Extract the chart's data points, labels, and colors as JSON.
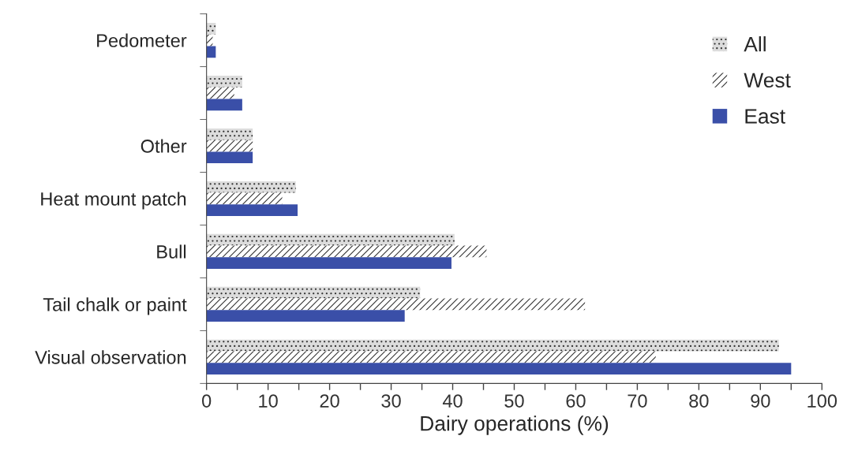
{
  "chart_data": {
    "type": "bar",
    "orientation": "horizontal",
    "xlabel": "Dairy operations (%)",
    "categories": [
      "Pedometer",
      null,
      "Other",
      "Heat mount patch",
      "Bull",
      "Tail chalk or paint",
      "Visual observation"
    ],
    "series": [
      {
        "name": "All",
        "color": "#dcdcdc",
        "values": [
          1.5,
          5.8,
          7.5,
          14.5,
          40.3,
          34.7,
          93
        ]
      },
      {
        "name": "West",
        "color": "#ffffff",
        "values": [
          1,
          4.5,
          7.5,
          12.3,
          45.5,
          61.5,
          73
        ]
      },
      {
        "name": "East",
        "color": "#3a4fa8",
        "values": [
          1.5,
          5.8,
          7.5,
          14.8,
          39.8,
          32.2,
          95
        ]
      }
    ],
    "xlim": [
      0,
      100
    ],
    "xticks": [
      0,
      {
        "value": 5,
        "label": null
      },
      10,
      {
        "value": 15,
        "label": null
      },
      20,
      {
        "value": 25,
        "label": null
      },
      30,
      {
        "value": 35,
        "label": null
      },
      40,
      {
        "value": 45,
        "label": null
      },
      50,
      {
        "value": 55,
        "label": null
      },
      60,
      {
        "value": 65,
        "label": null
      },
      70,
      {
        "value": 75,
        "label": null
      },
      80,
      {
        "value": 85,
        "label": null
      },
      90,
      {
        "value": 95,
        "label": null
      },
      100
    ],
    "grid": false,
    "legend": "top right"
  }
}
